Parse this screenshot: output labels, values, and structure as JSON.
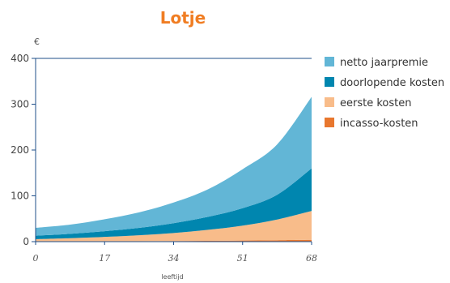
{
  "chart_data": {
    "type": "area",
    "stacked": true,
    "title": "Lotje",
    "ylabel": "€",
    "xlabel": "leeftijd",
    "x_ticks": [
      "0",
      "17",
      "34",
      "51",
      "68"
    ],
    "y_ticks": [
      "0",
      "100",
      "200",
      "300",
      "400"
    ],
    "xlim": [
      0,
      68
    ],
    "ylim": [
      0,
      400
    ],
    "grid": false,
    "legend_position": "right",
    "x": [
      0,
      8.5,
      17,
      25.5,
      34,
      42.5,
      51,
      59.5,
      68
    ],
    "series": [
      {
        "name": "incasso-kosten",
        "color": "#E8772E",
        "values": [
          0.5,
          0.6,
          0.8,
          1.0,
          1.3,
          1.8,
          2.5,
          3.2,
          4.0
        ]
      },
      {
        "name": "eerste kosten",
        "color": "#F8BC8A",
        "values": [
          5,
          7,
          9.5,
          13,
          17.5,
          24,
          32.5,
          45,
          63
        ]
      },
      {
        "name": "doorlopende kosten",
        "color": "#0086AF",
        "values": [
          7.5,
          9.5,
          12.5,
          16,
          21.5,
          28.5,
          38,
          54,
          93
        ]
      },
      {
        "name": "netto jaarpremie",
        "color": "#62B6D6",
        "values": [
          17,
          20,
          26,
          34,
          45,
          60,
          85,
          110,
          156
        ]
      }
    ],
    "legend_order": [
      "netto jaarpremie",
      "doorlopende kosten",
      "eerste kosten",
      "incasso-kosten"
    ],
    "colors": {
      "title": "#F07D23",
      "axis": "#1f4f8a"
    }
  }
}
